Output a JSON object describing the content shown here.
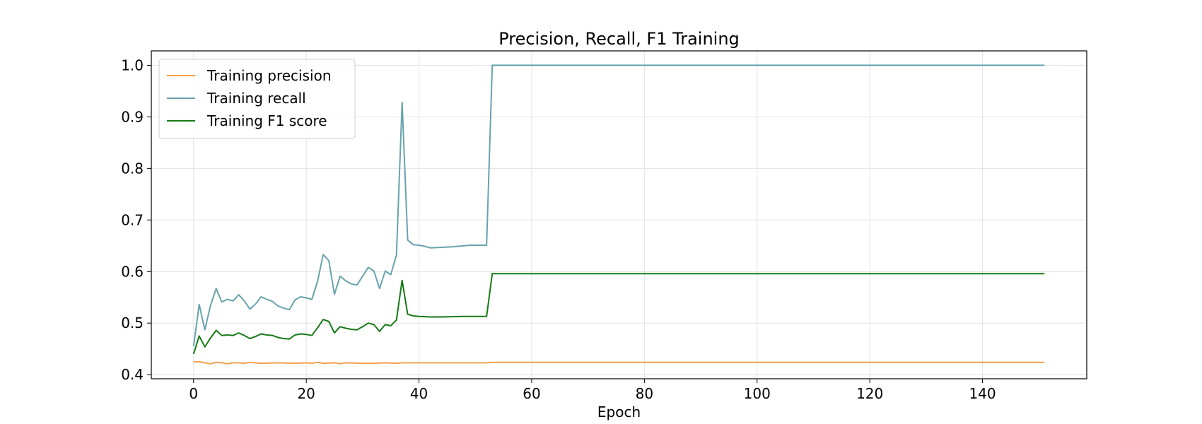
{
  "chart_data": {
    "type": "line",
    "title": "Precision, Recall, F1 Training",
    "xlabel": "Epoch",
    "ylabel": "",
    "xlim": [
      -7.5,
      158.5
    ],
    "ylim": [
      0.392,
      1.028
    ],
    "xticks": [
      0,
      20,
      40,
      60,
      80,
      100,
      120,
      140
    ],
    "yticks": [
      0.4,
      0.5,
      0.6,
      0.7,
      0.8,
      0.9,
      1.0
    ],
    "xtick_labels": [
      "0",
      "20",
      "40",
      "60",
      "80",
      "100",
      "120",
      "140"
    ],
    "ytick_labels": [
      "0.4",
      "0.5",
      "0.6",
      "0.7",
      "0.8",
      "0.9",
      "1.0"
    ],
    "grid": true,
    "legend_position": "top-left",
    "series": [
      {
        "name": "Training precision",
        "color": "#f4a04e",
        "points": [
          [
            0,
            0.425
          ],
          [
            1,
            0.425
          ],
          [
            2,
            0.423
          ],
          [
            3,
            0.421
          ],
          [
            4,
            0.424
          ],
          [
            5,
            0.423
          ],
          [
            6,
            0.421
          ],
          [
            7,
            0.423
          ],
          [
            8,
            0.423
          ],
          [
            9,
            0.422
          ],
          [
            10,
            0.424
          ],
          [
            12,
            0.422
          ],
          [
            15,
            0.423
          ],
          [
            18,
            0.422
          ],
          [
            20,
            0.423
          ],
          [
            21,
            0.422
          ],
          [
            22,
            0.424
          ],
          [
            23,
            0.422
          ],
          [
            25,
            0.423
          ],
          [
            26,
            0.421
          ],
          [
            27,
            0.423
          ],
          [
            30,
            0.422
          ],
          [
            32,
            0.422
          ],
          [
            34,
            0.423
          ],
          [
            36,
            0.422
          ],
          [
            37,
            0.423
          ],
          [
            40,
            0.423
          ],
          [
            52,
            0.423
          ],
          [
            53,
            0.424
          ],
          [
            151,
            0.424
          ]
        ]
      },
      {
        "name": "Training recall",
        "color": "#67a3ad",
        "points": [
          [
            0,
            0.455
          ],
          [
            1,
            0.536
          ],
          [
            2,
            0.487
          ],
          [
            3,
            0.534
          ],
          [
            4,
            0.567
          ],
          [
            5,
            0.541
          ],
          [
            6,
            0.546
          ],
          [
            7,
            0.543
          ],
          [
            8,
            0.555
          ],
          [
            9,
            0.543
          ],
          [
            10,
            0.527
          ],
          [
            11,
            0.537
          ],
          [
            12,
            0.551
          ],
          [
            13,
            0.546
          ],
          [
            14,
            0.542
          ],
          [
            15,
            0.533
          ],
          [
            16,
            0.529
          ],
          [
            17,
            0.526
          ],
          [
            18,
            0.545
          ],
          [
            19,
            0.551
          ],
          [
            20,
            0.549
          ],
          [
            21,
            0.546
          ],
          [
            22,
            0.581
          ],
          [
            23,
            0.633
          ],
          [
            24,
            0.621
          ],
          [
            25,
            0.556
          ],
          [
            26,
            0.591
          ],
          [
            27,
            0.582
          ],
          [
            28,
            0.576
          ],
          [
            29,
            0.574
          ],
          [
            30,
            0.591
          ],
          [
            31,
            0.608
          ],
          [
            32,
            0.601
          ],
          [
            33,
            0.567
          ],
          [
            34,
            0.601
          ],
          [
            35,
            0.594
          ],
          [
            36,
            0.632
          ],
          [
            37,
            0.928
          ],
          [
            38,
            0.661
          ],
          [
            39,
            0.652
          ],
          [
            40,
            0.651
          ],
          [
            41,
            0.649
          ],
          [
            42,
            0.646
          ],
          [
            44,
            0.647
          ],
          [
            46,
            0.648
          ],
          [
            48,
            0.65
          ],
          [
            49,
            0.651
          ],
          [
            52,
            0.651
          ],
          [
            53,
            1.0
          ],
          [
            151,
            1.0
          ]
        ]
      },
      {
        "name": "Training F1 score",
        "color": "#167a16",
        "points": [
          [
            0,
            0.44
          ],
          [
            1,
            0.475
          ],
          [
            2,
            0.454
          ],
          [
            3,
            0.471
          ],
          [
            4,
            0.486
          ],
          [
            5,
            0.476
          ],
          [
            6,
            0.477
          ],
          [
            7,
            0.476
          ],
          [
            8,
            0.481
          ],
          [
            9,
            0.476
          ],
          [
            10,
            0.47
          ],
          [
            11,
            0.474
          ],
          [
            12,
            0.479
          ],
          [
            13,
            0.477
          ],
          [
            14,
            0.476
          ],
          [
            15,
            0.472
          ],
          [
            16,
            0.47
          ],
          [
            17,
            0.469
          ],
          [
            18,
            0.477
          ],
          [
            19,
            0.479
          ],
          [
            20,
            0.478
          ],
          [
            21,
            0.476
          ],
          [
            22,
            0.491
          ],
          [
            23,
            0.507
          ],
          [
            24,
            0.503
          ],
          [
            25,
            0.481
          ],
          [
            26,
            0.493
          ],
          [
            27,
            0.49
          ],
          [
            28,
            0.488
          ],
          [
            29,
            0.487
          ],
          [
            30,
            0.493
          ],
          [
            31,
            0.5
          ],
          [
            32,
            0.497
          ],
          [
            33,
            0.484
          ],
          [
            34,
            0.497
          ],
          [
            35,
            0.495
          ],
          [
            36,
            0.506
          ],
          [
            37,
            0.583
          ],
          [
            38,
            0.517
          ],
          [
            39,
            0.514
          ],
          [
            40,
            0.513
          ],
          [
            42,
            0.512
          ],
          [
            44,
            0.512
          ],
          [
            48,
            0.513
          ],
          [
            52,
            0.513
          ],
          [
            53,
            0.596
          ],
          [
            151,
            0.596
          ]
        ]
      }
    ]
  }
}
